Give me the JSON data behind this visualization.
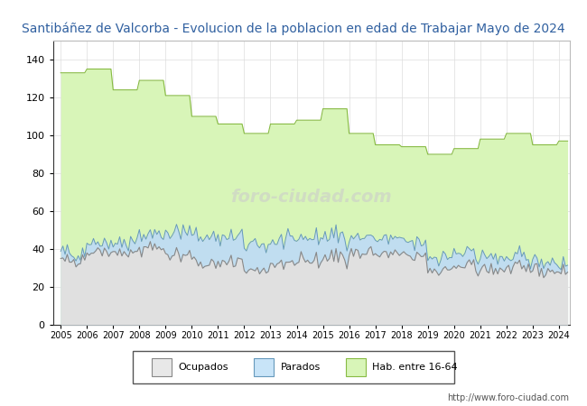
{
  "title": "Santibáñez de Valcorba - Evolucion de la poblacion en edad de Trabajar Mayo de 2024",
  "title_color": "#3060a0",
  "ylabel": "",
  "xlabel": "",
  "ylim": [
    0,
    150
  ],
  "yticks": [
    0,
    20,
    40,
    60,
    80,
    100,
    120,
    140
  ],
  "url_text": "http://www.foro-ciudad.com",
  "watermark": "foro-ciudad.com",
  "legend_labels": [
    "Ocupados",
    "Parados",
    "Hab. entre 16-64"
  ],
  "legend_colors": [
    "#e8e8e8",
    "#c8e4f8",
    "#d8f5b8"
  ],
  "legend_edge_colors": [
    "#888888",
    "#6699bb",
    "#88bb44"
  ],
  "years": [
    2005,
    2006,
    2007,
    2008,
    2009,
    2010,
    2011,
    2012,
    2013,
    2014,
    2015,
    2016,
    2017,
    2018,
    2019,
    2020,
    2021,
    2022,
    2023,
    2024
  ],
  "hab_annual": [
    133,
    135,
    124,
    129,
    121,
    110,
    106,
    101,
    106,
    108,
    114,
    101,
    95,
    94,
    90,
    93,
    98,
    101,
    95,
    97
  ],
  "ocup_annual": [
    34,
    39,
    38,
    41,
    37,
    33,
    33,
    29,
    32,
    34,
    36,
    37,
    37,
    36,
    29,
    30,
    30,
    30,
    29,
    28
  ],
  "par_annual": [
    4,
    5,
    5,
    7,
    12,
    14,
    13,
    13,
    12,
    12,
    11,
    9,
    8,
    7,
    7,
    7,
    6,
    5,
    5,
    4
  ],
  "hab_color": "#d8f5b8",
  "hab_edge": "#88bb44",
  "ocup_color": "#e0e0e0",
  "ocup_edge": "#888888",
  "par_color": "#c0ddf0",
  "par_edge": "#6699bb",
  "bg_color": "#ffffff",
  "plot_bg": "#ffffff",
  "grid_color": "#dddddd",
  "title_fontsize": 10
}
